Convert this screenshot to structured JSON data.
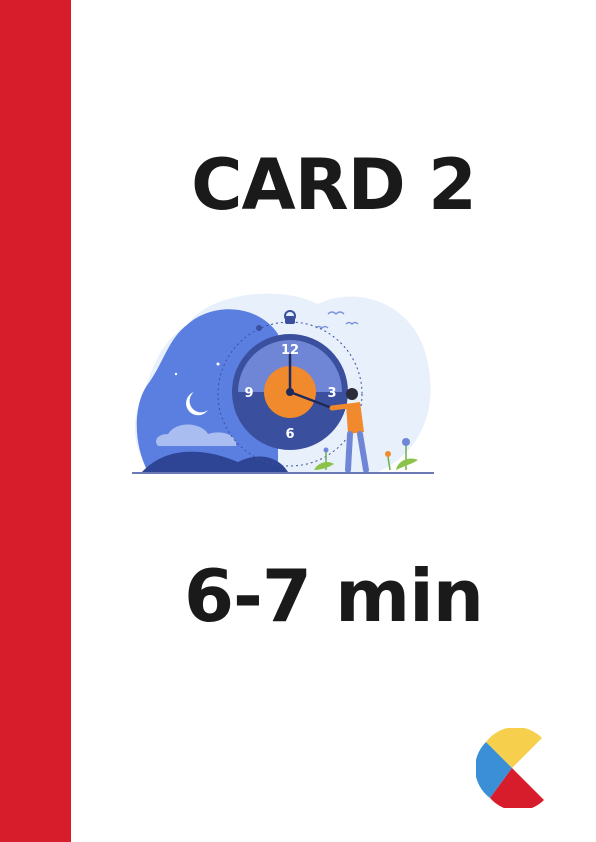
{
  "card": {
    "title": "CARD 2",
    "duration": "6-7 min"
  },
  "illustration": {
    "clock_numbers": [
      "12",
      "3",
      "6",
      "9"
    ],
    "icons": [
      "stopwatch-icon",
      "moon-icon",
      "person-figure",
      "bird-icon",
      "flower-icon"
    ]
  },
  "logo": {
    "icon": "logo-mark"
  },
  "colors": {
    "accent_red": "#d71d2c",
    "logo_yellow": "#f6d04d",
    "logo_blue": "#3b8fd6",
    "logo_red": "#d71d2c",
    "clock_blue": "#3a4f9e",
    "clock_light_blue": "#6f86d6",
    "clock_orange": "#f08a2c",
    "text_dark": "#1a1a1a"
  }
}
